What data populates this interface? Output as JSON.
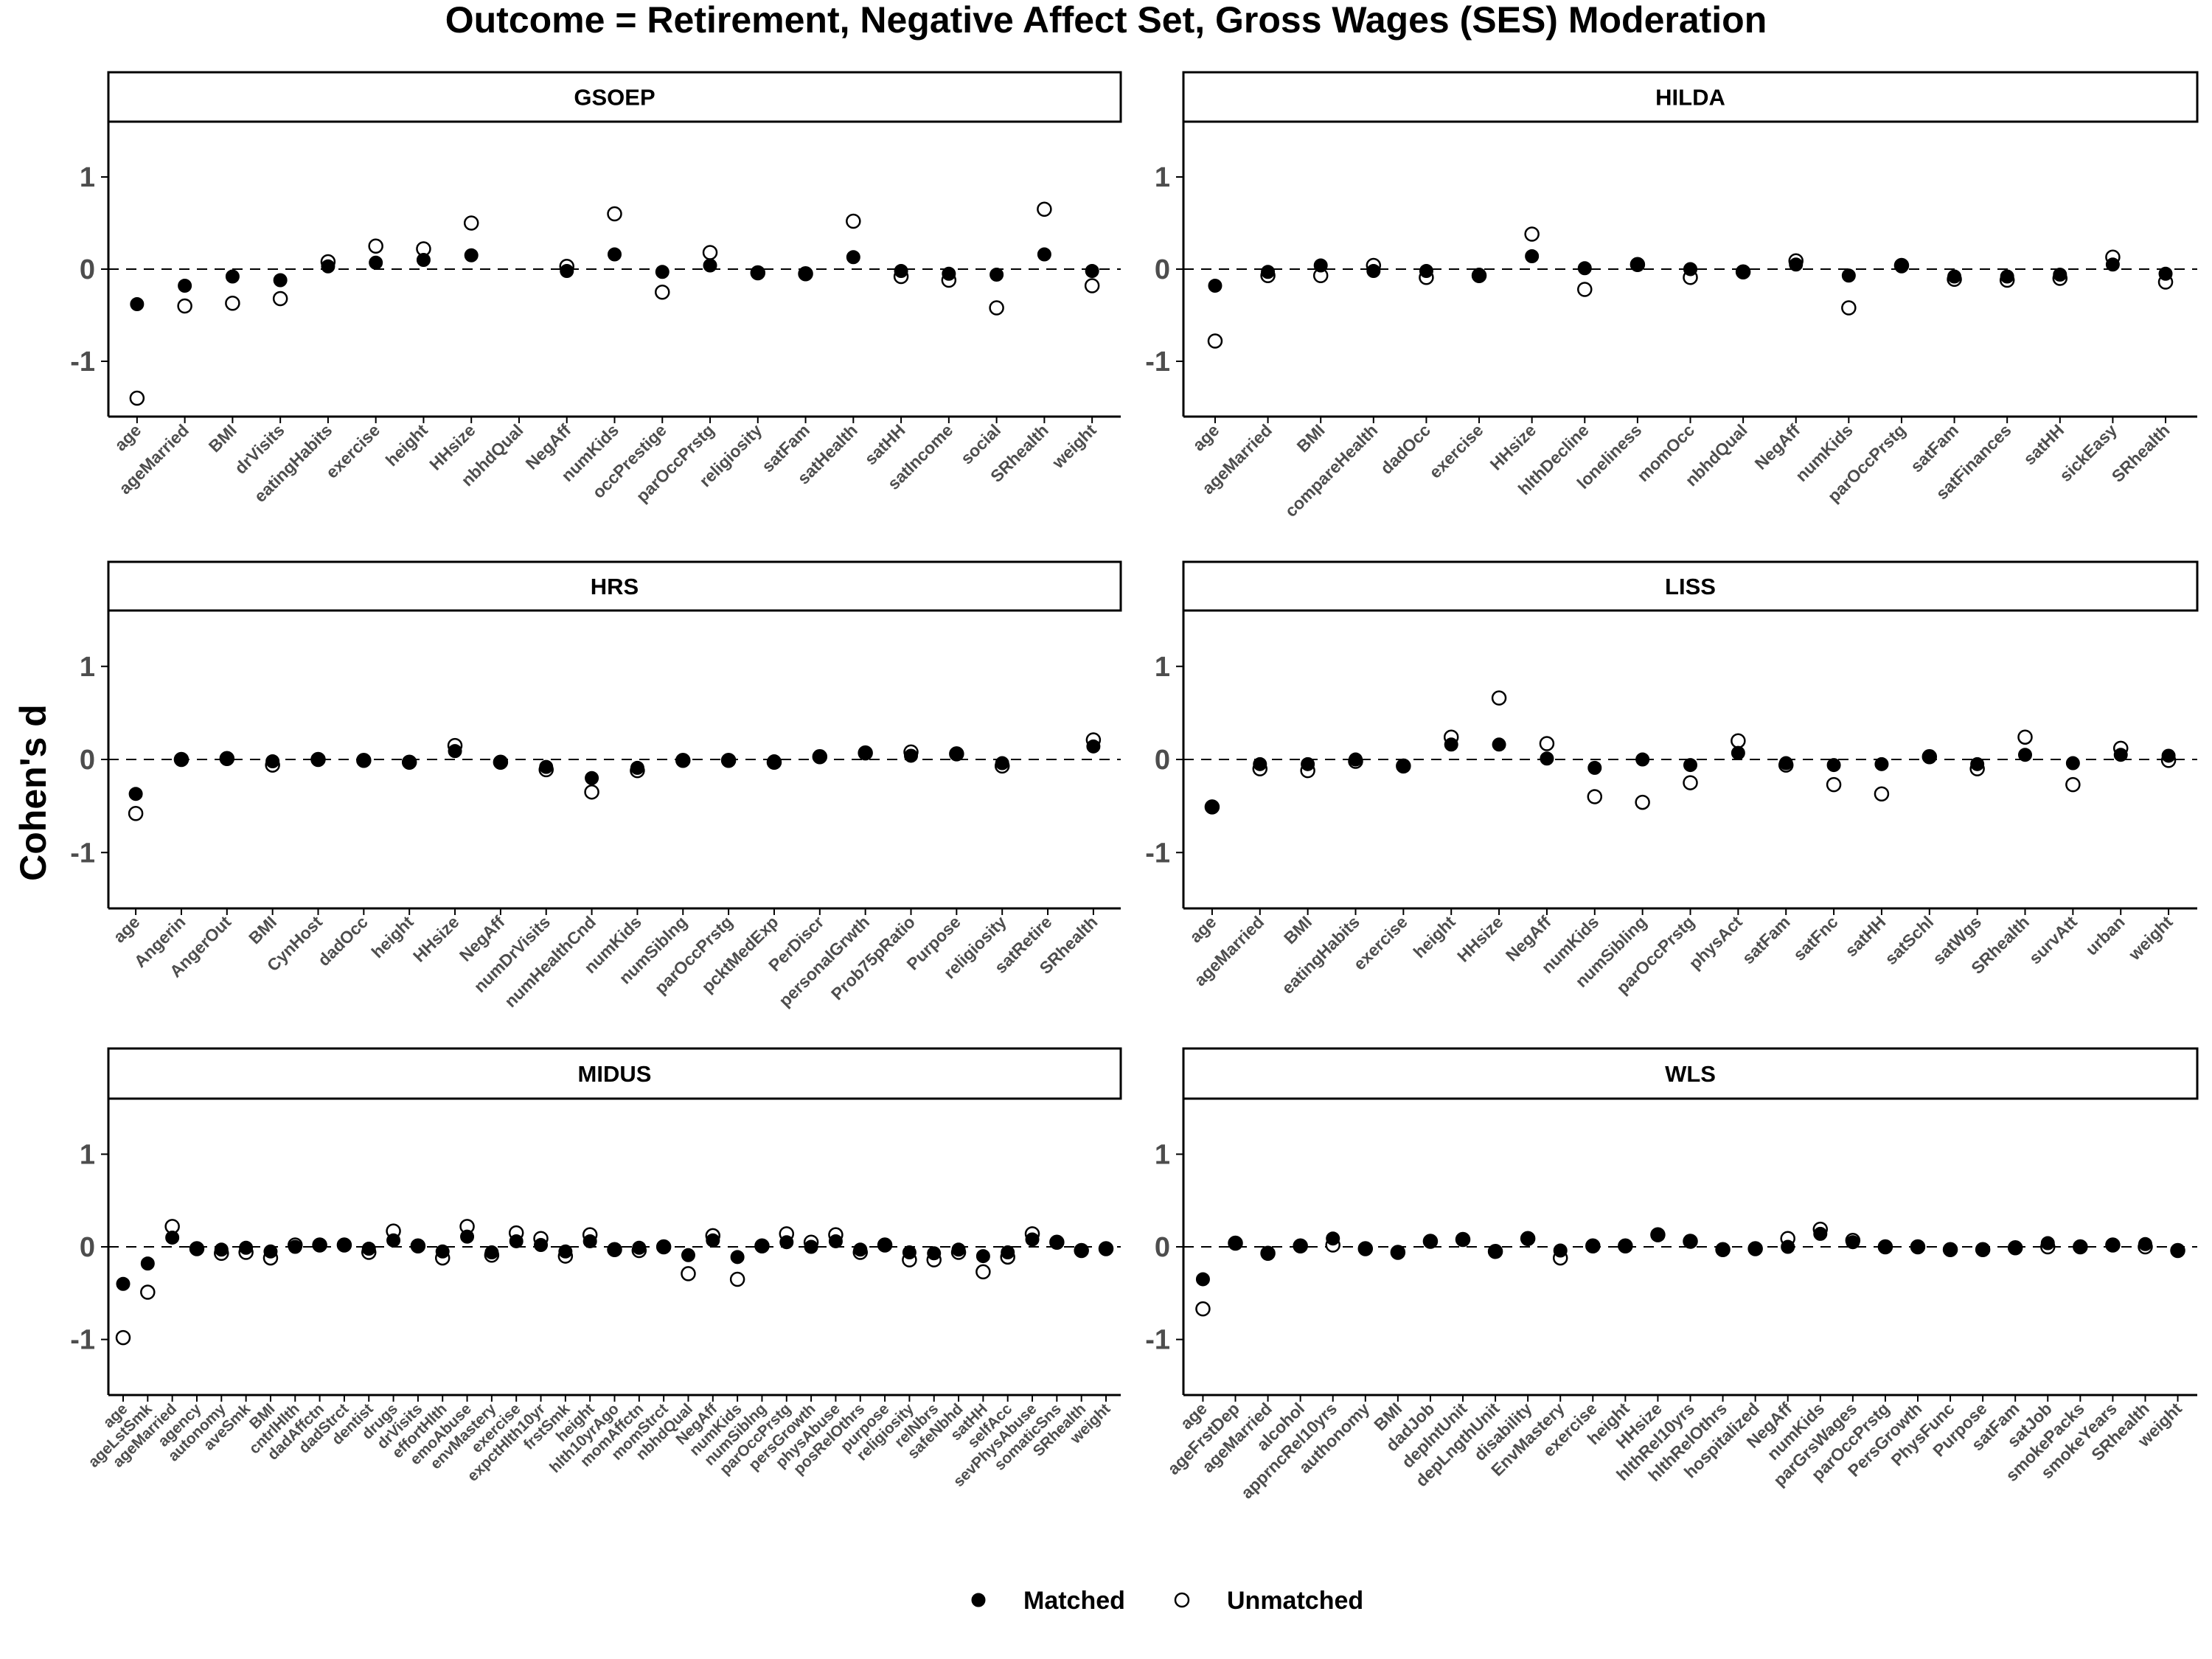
{
  "figure": {
    "title": "Outcome = Retirement, Negative Affect Set, Gross Wages (SES) Moderation",
    "ylabel": "Cohen's d",
    "legend": {
      "placement": "bottom-center",
      "items": [
        {
          "name": "Matched",
          "marker": "filled-circle",
          "color": "#000000"
        },
        {
          "name": "Unmatched",
          "marker": "open-circle",
          "color": "#000000"
        }
      ]
    }
  },
  "chart_data": [
    {
      "type": "scatter",
      "panel": "GSOEP",
      "ylim": [
        -1.6,
        1.6
      ],
      "yticks": [
        -1,
        0,
        1
      ],
      "reference_line": 0,
      "grid": false,
      "categories": [
        "age",
        "ageMarried",
        "BMI",
        "drVisits",
        "eatingHabits",
        "exercise",
        "height",
        "HHsize",
        "nbhdQual",
        "NegAff",
        "numKids",
        "occPrestige",
        "parOccPrstg",
        "religiosity",
        "satFam",
        "satHealth",
        "satHH",
        "satIncome",
        "social",
        "SRhealth",
        "weight"
      ],
      "series": [
        {
          "name": "Matched",
          "values": [
            -0.38,
            -0.18,
            -0.08,
            -0.12,
            0.03,
            0.07,
            0.1,
            0.15,
            null,
            -0.02,
            0.16,
            -0.03,
            0.04,
            -0.04,
            -0.05,
            0.13,
            -0.02,
            -0.05,
            -0.06,
            0.16,
            -0.02
          ]
        },
        {
          "name": "Unmatched",
          "values": [
            -1.4,
            -0.4,
            -0.37,
            -0.32,
            0.08,
            0.25,
            0.22,
            0.5,
            null,
            0.03,
            0.6,
            -0.25,
            0.18,
            -0.04,
            -0.05,
            0.52,
            -0.08,
            -0.12,
            -0.42,
            0.65,
            -0.18
          ]
        }
      ]
    },
    {
      "type": "scatter",
      "panel": "HILDA",
      "ylim": [
        -1.6,
        1.6
      ],
      "yticks": [
        -1,
        0,
        1
      ],
      "reference_line": 0,
      "grid": false,
      "categories": [
        "age",
        "ageMarried",
        "BMI",
        "compareHealth",
        "dadOcc",
        "exercise",
        "HHsize",
        "hlthDecline",
        "loneliness",
        "momOcc",
        "nbhdQual",
        "NegAff",
        "numKids",
        "parOccPrstg",
        "satFam",
        "satFinances",
        "satHH",
        "sickEasy",
        "SRhealth"
      ],
      "series": [
        {
          "name": "Matched",
          "values": [
            -0.18,
            -0.03,
            0.04,
            -0.02,
            -0.02,
            -0.06,
            0.14,
            0.01,
            0.05,
            0.0,
            -0.03,
            0.05,
            -0.07,
            0.03,
            -0.08,
            -0.08,
            -0.06,
            0.05,
            -0.05
          ]
        },
        {
          "name": "Unmatched",
          "values": [
            -0.78,
            -0.07,
            -0.07,
            0.04,
            -0.09,
            -0.07,
            0.38,
            -0.22,
            0.05,
            -0.09,
            -0.03,
            0.09,
            -0.42,
            0.04,
            -0.11,
            -0.12,
            -0.1,
            0.13,
            -0.14
          ]
        }
      ]
    },
    {
      "type": "scatter",
      "panel": "HRS",
      "ylim": [
        -1.6,
        1.6
      ],
      "yticks": [
        -1,
        0,
        1
      ],
      "reference_line": 0,
      "grid": false,
      "categories": [
        "age",
        "Angerin",
        "AngerOut",
        "BMI",
        "CynHost",
        "dadOcc",
        "height",
        "HHsize",
        "NegAff",
        "numDrVisits",
        "numHealthCnd",
        "numKids",
        "numSiblng",
        "parOccPrstg",
        "pcktMedExp",
        "PerDiscr",
        "personalGrwth",
        "Prob75pRatio",
        "Purpose",
        "religiosity",
        "satRetire",
        "SRhealth"
      ],
      "series": [
        {
          "name": "Matched",
          "values": [
            -0.37,
            0.0,
            0.01,
            -0.02,
            0.0,
            -0.01,
            -0.03,
            0.09,
            -0.03,
            -0.08,
            -0.2,
            -0.09,
            -0.01,
            -0.01,
            -0.02,
            0.03,
            0.07,
            0.04,
            0.06,
            -0.04,
            null,
            0.14
          ]
        },
        {
          "name": "Unmatched",
          "values": [
            -0.58,
            0.0,
            0.01,
            -0.06,
            0.0,
            -0.01,
            -0.03,
            0.15,
            -0.03,
            -0.11,
            -0.35,
            -0.12,
            -0.01,
            -0.01,
            -0.03,
            0.03,
            0.07,
            0.08,
            0.06,
            -0.07,
            null,
            0.21
          ]
        }
      ]
    },
    {
      "type": "scatter",
      "panel": "LISS",
      "ylim": [
        -1.6,
        1.6
      ],
      "yticks": [
        -1,
        0,
        1
      ],
      "reference_line": 0,
      "grid": false,
      "categories": [
        "age",
        "ageMarried",
        "BMI",
        "eatingHabits",
        "exercise",
        "height",
        "HHsize",
        "NegAff",
        "numKids",
        "numSibling",
        "parOccPrstg",
        "physAct",
        "satFam",
        "satFnc",
        "satHH",
        "satSchl",
        "satWgs",
        "SRhealth",
        "survAtt",
        "urban",
        "weight"
      ],
      "series": [
        {
          "name": "Matched",
          "values": [
            -0.51,
            -0.05,
            -0.05,
            0.0,
            -0.07,
            0.16,
            0.16,
            0.01,
            -0.09,
            0.0,
            -0.06,
            0.07,
            -0.04,
            -0.06,
            -0.05,
            0.03,
            -0.05,
            0.05,
            -0.04,
            0.05,
            0.04
          ]
        },
        {
          "name": "Unmatched",
          "values": [
            -0.51,
            -0.1,
            -0.12,
            -0.02,
            -0.07,
            0.24,
            0.66,
            0.17,
            -0.4,
            -0.46,
            -0.25,
            0.2,
            -0.06,
            -0.27,
            -0.37,
            0.03,
            -0.1,
            0.24,
            -0.27,
            0.12,
            -0.01
          ]
        }
      ]
    },
    {
      "type": "scatter",
      "panel": "MIDUS",
      "ylim": [
        -1.6,
        1.6
      ],
      "yticks": [
        -1,
        0,
        1
      ],
      "reference_line": 0,
      "grid": false,
      "categories": [
        "age",
        "ageLstSmk",
        "ageMarried",
        "agency",
        "autonomy",
        "aveSmk",
        "BMI",
        "cntrlHlth",
        "dadAffctn",
        "dadStrct",
        "dentist",
        "drugs",
        "drVisits",
        "effortHlth",
        "emoAbuse",
        "envMastery",
        "exercise",
        "expctHlth10yr",
        "frstSmk",
        "height",
        "hlth10yrAgo",
        "momAffctn",
        "momStrct",
        "nbhdQual",
        "NegAff",
        "numKids",
        "numSiblng",
        "parOccPrstg",
        "persGrowth",
        "physAbuse",
        "posRelOthrs",
        "purpose",
        "religiosity",
        "relNbrs",
        "safeNbhd",
        "satHH",
        "selfAcc",
        "sevPhysAbuse",
        "somaticSns",
        "SRhealth",
        "weight"
      ],
      "series": [
        {
          "name": "Matched",
          "values": [
            -0.4,
            -0.18,
            0.1,
            -0.02,
            -0.03,
            -0.01,
            -0.05,
            0.0,
            0.02,
            0.02,
            -0.02,
            0.07,
            0.01,
            -0.05,
            0.11,
            -0.06,
            0.06,
            0.02,
            -0.05,
            0.06,
            -0.03,
            -0.01,
            0.0,
            -0.09,
            0.07,
            -0.11,
            0.01,
            0.05,
            0.0,
            0.06,
            -0.03,
            0.02,
            -0.06,
            -0.07,
            -0.03,
            -0.1,
            -0.06,
            0.08,
            0.05,
            -0.04,
            -0.02
          ]
        },
        {
          "name": "Unmatched",
          "values": [
            -0.98,
            -0.49,
            0.22,
            -0.02,
            -0.07,
            -0.06,
            -0.12,
            0.02,
            0.02,
            0.02,
            -0.06,
            0.17,
            0.01,
            -0.12,
            0.22,
            -0.09,
            0.15,
            0.09,
            -0.1,
            0.13,
            -0.03,
            -0.04,
            0.0,
            -0.29,
            0.12,
            -0.35,
            0.01,
            0.14,
            0.05,
            0.13,
            -0.06,
            0.02,
            -0.14,
            -0.14,
            -0.06,
            -0.27,
            -0.11,
            0.14,
            0.05,
            -0.04,
            -0.02
          ]
        }
      ]
    },
    {
      "type": "scatter",
      "panel": "WLS",
      "ylim": [
        -1.6,
        1.6
      ],
      "yticks": [
        -1,
        0,
        1
      ],
      "reference_line": 0,
      "grid": false,
      "categories": [
        "age",
        "ageFrstDep",
        "ageMarried",
        "alcohol",
        "apprncRel10yrs",
        "authonomy",
        "BMI",
        "dadJob",
        "depIntUnit",
        "depLngthUnit",
        "disability",
        "EnvMastery",
        "exercise",
        "height",
        "HHsize",
        "hlthRel10yrs",
        "hlthRelOthrs",
        "hospitalized",
        "NegAff",
        "numKids",
        "parGrsWages",
        "parOccPrstg",
        "PersGrowth",
        "PhysFunc",
        "Purpose",
        "satFam",
        "satJob",
        "smokePacks",
        "smokeYears",
        "SRhealth",
        "weight"
      ],
      "series": [
        {
          "name": "Matched",
          "values": [
            -0.35,
            0.04,
            -0.07,
            0.01,
            0.09,
            -0.02,
            -0.06,
            0.06,
            0.08,
            -0.05,
            0.09,
            -0.04,
            0.01,
            0.01,
            0.13,
            0.06,
            -0.03,
            -0.02,
            0.0,
            0.14,
            0.05,
            0.0,
            0.0,
            -0.03,
            -0.03,
            -0.01,
            0.04,
            0.0,
            0.02,
            0.03,
            -0.04
          ]
        },
        {
          "name": "Unmatched",
          "values": [
            -0.67,
            0.04,
            -0.07,
            0.01,
            0.02,
            -0.02,
            -0.06,
            0.06,
            0.08,
            -0.05,
            0.09,
            -0.12,
            0.01,
            0.01,
            0.13,
            0.06,
            -0.03,
            -0.02,
            0.09,
            0.19,
            0.07,
            0.0,
            0.0,
            -0.03,
            -0.03,
            -0.01,
            0.0,
            0.0,
            0.02,
            0.0,
            -0.04
          ]
        }
      ]
    }
  ]
}
